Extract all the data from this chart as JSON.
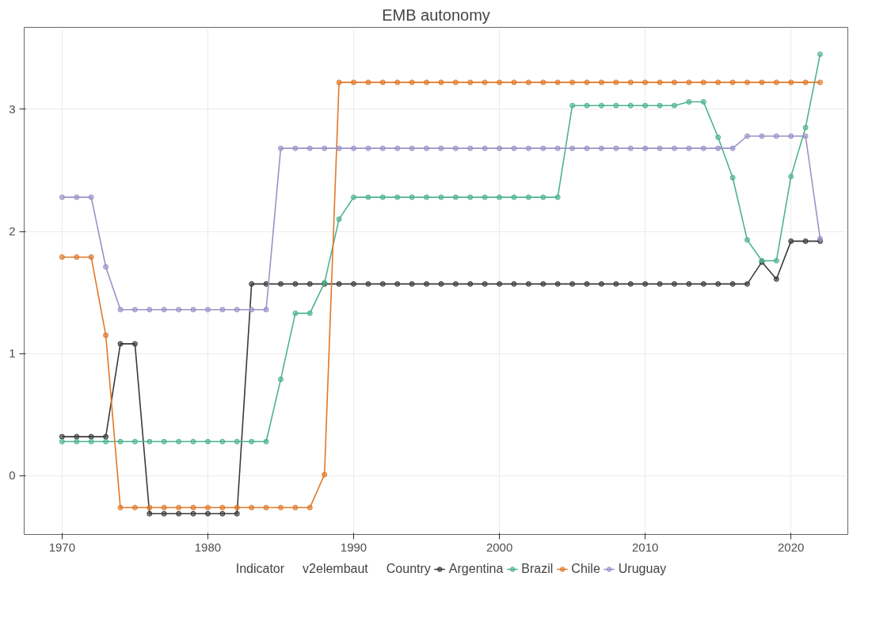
{
  "chart_data": {
    "type": "line",
    "title": "EMB autonomy",
    "legend_title": "Country",
    "annotations": [
      "Indicator",
      "v2elembaut"
    ],
    "x": [
      1970,
      1971,
      1972,
      1973,
      1974,
      1975,
      1976,
      1977,
      1978,
      1979,
      1980,
      1981,
      1982,
      1983,
      1984,
      1985,
      1986,
      1987,
      1988,
      1989,
      1990,
      1991,
      1992,
      1993,
      1994,
      1995,
      1996,
      1997,
      1998,
      1999,
      2000,
      2001,
      2002,
      2003,
      2004,
      2005,
      2006,
      2007,
      2008,
      2009,
      2010,
      2011,
      2012,
      2013,
      2014,
      2015,
      2016,
      2017,
      2018,
      2019,
      2020,
      2021,
      2022
    ],
    "series": [
      {
        "name": "Argentina",
        "color": "#3a3a3a",
        "values": [
          0.32,
          0.32,
          0.32,
          0.32,
          1.08,
          1.08,
          -0.31,
          -0.31,
          -0.31,
          -0.31,
          -0.31,
          -0.31,
          -0.31,
          1.57,
          1.57,
          1.57,
          1.57,
          1.57,
          1.57,
          1.57,
          1.57,
          1.57,
          1.57,
          1.57,
          1.57,
          1.57,
          1.57,
          1.57,
          1.57,
          1.57,
          1.57,
          1.57,
          1.57,
          1.57,
          1.57,
          1.57,
          1.57,
          1.57,
          1.57,
          1.57,
          1.57,
          1.57,
          1.57,
          1.57,
          1.57,
          1.57,
          1.57,
          1.57,
          1.75,
          1.61,
          1.92,
          1.92,
          1.92
        ]
      },
      {
        "name": "Brazil",
        "color": "#4db38e",
        "values": [
          0.28,
          0.28,
          0.28,
          0.28,
          0.28,
          0.28,
          0.28,
          0.28,
          0.28,
          0.28,
          0.28,
          0.28,
          0.28,
          0.28,
          0.28,
          0.79,
          1.33,
          1.33,
          1.58,
          2.1,
          2.28,
          2.28,
          2.28,
          2.28,
          2.28,
          2.28,
          2.28,
          2.28,
          2.28,
          2.28,
          2.28,
          2.28,
          2.28,
          2.28,
          2.28,
          3.03,
          3.03,
          3.03,
          3.03,
          3.03,
          3.03,
          3.03,
          3.03,
          3.06,
          3.06,
          2.77,
          2.44,
          1.93,
          1.76,
          1.76,
          2.45,
          2.85,
          3.45
        ]
      },
      {
        "name": "Chile",
        "color": "#e0782a",
        "values": [
          1.79,
          1.79,
          1.79,
          1.15,
          -0.26,
          -0.26,
          -0.26,
          -0.26,
          -0.26,
          -0.26,
          -0.26,
          -0.26,
          -0.26,
          -0.26,
          -0.26,
          -0.26,
          -0.26,
          -0.26,
          0.01,
          3.22,
          3.22,
          3.22,
          3.22,
          3.22,
          3.22,
          3.22,
          3.22,
          3.22,
          3.22,
          3.22,
          3.22,
          3.22,
          3.22,
          3.22,
          3.22,
          3.22,
          3.22,
          3.22,
          3.22,
          3.22,
          3.22,
          3.22,
          3.22,
          3.22,
          3.22,
          3.22,
          3.22,
          3.22,
          3.22,
          3.22,
          3.22,
          3.22,
          3.22
        ]
      },
      {
        "name": "Uruguay",
        "color": "#9a92c8",
        "values": [
          2.28,
          2.28,
          2.28,
          1.71,
          1.36,
          1.36,
          1.36,
          1.36,
          1.36,
          1.36,
          1.36,
          1.36,
          1.36,
          1.36,
          1.36,
          2.68,
          2.68,
          2.68,
          2.68,
          2.68,
          2.68,
          2.68,
          2.68,
          2.68,
          2.68,
          2.68,
          2.68,
          2.68,
          2.68,
          2.68,
          2.68,
          2.68,
          2.68,
          2.68,
          2.68,
          2.68,
          2.68,
          2.68,
          2.68,
          2.68,
          2.68,
          2.68,
          2.68,
          2.68,
          2.68,
          2.68,
          2.68,
          2.78,
          2.78,
          2.78,
          2.78,
          2.78,
          1.94
        ]
      }
    ],
    "xlim": [
      1967.4,
      2023.9
    ],
    "xticks": [
      1970,
      1980,
      1990,
      2000,
      2010,
      2020
    ],
    "ylim": [
      -0.48,
      3.67
    ],
    "yticks": [
      0,
      1,
      2,
      3
    ],
    "grid": true,
    "legend": "bottom",
    "marker": "circle",
    "line_style": "solid"
  }
}
